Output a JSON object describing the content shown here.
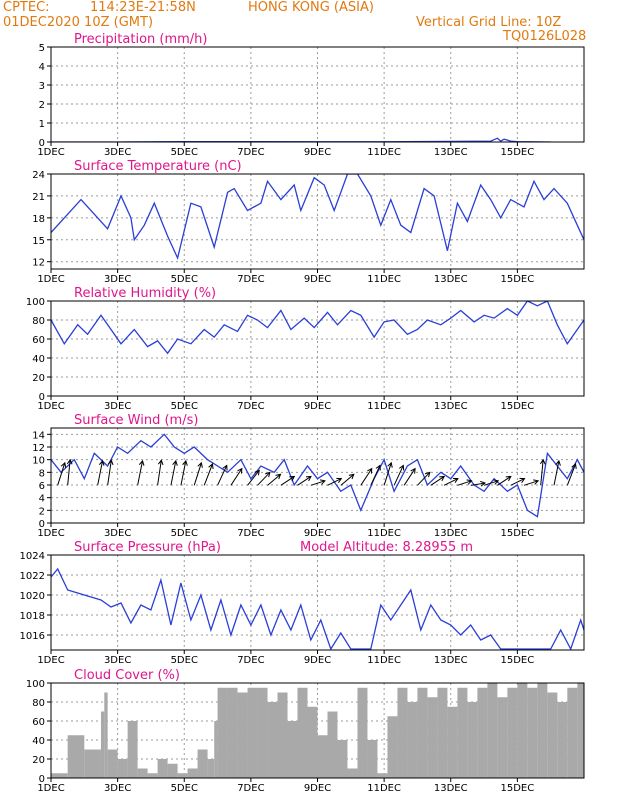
{
  "header": {
    "source": "CPTEC:",
    "coords": "114:23E-21:58N",
    "location": "HONG KONG (ASIA)",
    "datetime": "01DEC2020 10Z (GMT)",
    "grid_line": "Vertical Grid Line: 10Z",
    "code": "TQ0126L028"
  },
  "colors": {
    "header": "#e07a10",
    "title": "#e0168c",
    "line": "#2a3fd6",
    "bar": "#a9a9a9",
    "grid": "#9a9a9a"
  },
  "chart_data": [
    {
      "type": "line",
      "title": "Precipitation (mm/h)",
      "ylim": [
        0,
        5
      ],
      "yticks": [
        "0",
        "1",
        "2",
        "3",
        "4",
        "5"
      ],
      "xticks": [
        "1DEC",
        "3DEC",
        "5DEC",
        "7DEC",
        "9DEC",
        "11DEC",
        "13DEC",
        "15DEC"
      ],
      "x": [
        0,
        2,
        4,
        6,
        8,
        10,
        12,
        13.2,
        13.4,
        13.5,
        13.6,
        13.8,
        14,
        15
      ],
      "values": [
        0,
        0,
        0.02,
        0.02,
        0.01,
        0.01,
        0.03,
        0.05,
        0.2,
        0.05,
        0.15,
        0.05,
        0.02,
        0
      ]
    },
    {
      "type": "line",
      "title": "Surface Temperature (nC)",
      "ylim": [
        11,
        24
      ],
      "yticks": [
        "12",
        "15",
        "18",
        "21",
        "24"
      ],
      "xticks": [
        "1DEC",
        "3DEC",
        "5DEC",
        "7DEC",
        "9DEC",
        "11DEC",
        "13DEC",
        "15DEC"
      ],
      "x": [
        0,
        0.5,
        0.9,
        1.4,
        1.7,
        2.1,
        2.4,
        2.5,
        2.8,
        3.1,
        3.5,
        3.8,
        4.2,
        4.5,
        4.9,
        5.3,
        5.5,
        5.9,
        6.3,
        6.5,
        6.9,
        7.3,
        7.5,
        7.9,
        8.2,
        8.5,
        8.9,
        9.2,
        9.6,
        9.9,
        10.2,
        10.5,
        10.8,
        11.2,
        11.5,
        11.9,
        12.2,
        12.5,
        12.9,
        13.2,
        13.5,
        13.8,
        14.2,
        14.5,
        14.8,
        15.1,
        15.5,
        15.8,
        16
      ],
      "values": [
        16,
        18.5,
        20.5,
        18,
        16.5,
        21,
        18,
        15,
        17,
        20,
        15.5,
        12.5,
        20,
        19.5,
        14,
        21.5,
        22,
        19,
        20,
        23,
        20.5,
        22.5,
        19,
        23.5,
        22.5,
        19,
        24,
        24,
        21,
        17,
        20.5,
        17,
        16,
        22,
        21,
        13.5,
        20,
        17.5,
        22.5,
        20.5,
        18,
        20.5,
        19.5,
        23,
        20.5,
        22,
        20,
        17,
        15
      ]
    },
    {
      "type": "line",
      "title": "Relative Humidity (%)",
      "ylim": [
        0,
        100
      ],
      "yticks": [
        "0",
        "20",
        "40",
        "60",
        "80",
        "100"
      ],
      "xticks": [
        "1DEC",
        "3DEC",
        "5DEC",
        "7DEC",
        "9DEC",
        "11DEC",
        "13DEC",
        "15DEC"
      ],
      "x": [
        0,
        0.4,
        0.8,
        1.1,
        1.5,
        1.8,
        2.1,
        2.5,
        2.9,
        3.2,
        3.5,
        3.8,
        4.2,
        4.6,
        4.9,
        5.2,
        5.6,
        5.9,
        6.2,
        6.5,
        6.9,
        7.2,
        7.6,
        7.9,
        8.3,
        8.6,
        9.0,
        9.3,
        9.7,
        10.0,
        10.3,
        10.7,
        11.0,
        11.3,
        11.7,
        12.0,
        12.3,
        12.7,
        13.0,
        13.3,
        13.7,
        14.0,
        14.3,
        14.6,
        14.9,
        15.2,
        15.5,
        15.8,
        16
      ],
      "values": [
        80,
        55,
        75,
        65,
        85,
        70,
        55,
        70,
        52,
        58,
        45,
        60,
        55,
        70,
        62,
        75,
        68,
        85,
        80,
        72,
        90,
        70,
        82,
        72,
        88,
        75,
        90,
        85,
        62,
        78,
        80,
        65,
        70,
        80,
        75,
        82,
        90,
        78,
        85,
        82,
        92,
        85,
        100,
        95,
        100,
        75,
        55,
        70,
        80
      ]
    },
    {
      "type": "line",
      "title": "Surface Wind (m/s)",
      "ylim": [
        0,
        15
      ],
      "yticks": [
        "0",
        "2",
        "4",
        "6",
        "8",
        "10",
        "12",
        "14"
      ],
      "xticks": [
        "1DEC",
        "3DEC",
        "5DEC",
        "7DEC",
        "9DEC",
        "11DEC",
        "13DEC",
        "15DEC"
      ],
      "x": [
        0,
        0.3,
        0.7,
        1.0,
        1.3,
        1.7,
        2.0,
        2.3,
        2.7,
        3.0,
        3.4,
        3.7,
        4.0,
        4.3,
        4.7,
        5.0,
        5.3,
        5.7,
        6.0,
        6.3,
        6.7,
        7.0,
        7.3,
        7.7,
        8.0,
        8.3,
        8.7,
        9.0,
        9.3,
        9.7,
        10.0,
        10.3,
        10.7,
        11.0,
        11.3,
        11.7,
        12.0,
        12.3,
        12.7,
        13.0,
        13.3,
        13.7,
        14.0,
        14.3,
        14.6,
        14.9,
        15.2,
        15.5,
        15.8,
        16
      ],
      "values": [
        10,
        8,
        10,
        7,
        11,
        9,
        12,
        11,
        13,
        12,
        14,
        12,
        11,
        12,
        10,
        9,
        8,
        10,
        7,
        9,
        8,
        10,
        6,
        9,
        7,
        8,
        5,
        6,
        2,
        7,
        10,
        5,
        9,
        10,
        6,
        8,
        7,
        9,
        6,
        5,
        7,
        5,
        6,
        2,
        1,
        11,
        9,
        7,
        10,
        8
      ],
      "arrows": {
        "x": [
          0.2,
          0.5,
          1.4,
          1.7,
          2.6,
          3.2,
          3.6,
          3.9,
          4.3,
          4.6,
          5.0,
          5.4,
          5.9,
          6.2,
          6.5,
          6.9,
          7.4,
          7.8,
          8.3,
          8.7,
          9.3,
          9.6,
          10.0,
          10.3,
          10.6,
          11.0,
          11.4,
          11.8,
          12.2,
          12.6,
          13.0,
          13.4,
          13.8,
          14.2,
          14.7,
          15.1,
          15.5
        ],
        "deg": [
          210,
          190,
          200,
          195,
          200,
          195,
          200,
          200,
          210,
          215,
          220,
          230,
          235,
          240,
          245,
          250,
          250,
          260,
          255,
          245,
          230,
          220,
          210,
          220,
          230,
          240,
          250,
          255,
          260,
          265,
          260,
          250,
          255,
          260,
          190,
          200,
          215
        ]
      }
    },
    {
      "type": "line",
      "title": "Surface Pressure (hPa)",
      "subtitle": "Model Altitude: 8.28955 m",
      "ylim": [
        1014.5,
        1024
      ],
      "yticks": [
        "1016",
        "1018",
        "1020",
        "1022",
        "1024"
      ],
      "xticks": [
        "1DEC",
        "3DEC",
        "5DEC",
        "7DEC",
        "9DEC",
        "11DEC",
        "13DEC",
        "15DEC"
      ],
      "x": [
        0,
        0.2,
        0.5,
        0.8,
        1.2,
        1.5,
        1.8,
        2.1,
        2.4,
        2.7,
        3.0,
        3.3,
        3.6,
        3.9,
        4.2,
        4.5,
        4.8,
        5.1,
        5.4,
        5.7,
        6.0,
        6.3,
        6.6,
        6.9,
        7.2,
        7.5,
        7.8,
        8.1,
        8.4,
        8.7,
        9.0,
        9.3,
        9.6,
        9.9,
        10.2,
        10.5,
        10.8,
        11.1,
        11.4,
        11.7,
        12.0,
        12.3,
        12.6,
        12.9,
        13.2,
        13.5,
        13.8,
        14.1,
        14.4,
        14.7,
        15.0,
        15.3,
        15.6,
        15.9,
        16
      ],
      "values": [
        1021.8,
        1022.6,
        1020.5,
        1020.2,
        1019.8,
        1019.5,
        1018.8,
        1019.2,
        1017.2,
        1019.0,
        1018.5,
        1021.5,
        1017.0,
        1021.2,
        1017.5,
        1020.0,
        1016.5,
        1019.5,
        1016.0,
        1019.0,
        1017.0,
        1019.0,
        1016.0,
        1018.5,
        1016.5,
        1019.0,
        1015.5,
        1017.5,
        1014.6,
        1016.2,
        1014.6,
        1014.6,
        1014.6,
        1019.0,
        1017.5,
        1019.0,
        1020.5,
        1016.5,
        1019.0,
        1017.5,
        1017.0,
        1016.0,
        1017.0,
        1015.5,
        1016.0,
        1014.6,
        1014.6,
        1014.6,
        1014.6,
        1014.6,
        1014.6,
        1016.5,
        1014.6,
        1017.5,
        1016.5
      ]
    },
    {
      "type": "bar",
      "title": "Cloud Cover (%)",
      "ylim": [
        0,
        100
      ],
      "yticks": [
        "0",
        "20",
        "40",
        "60",
        "80",
        "100"
      ],
      "xticks": [
        "1DEC",
        "3DEC",
        "5DEC",
        "7DEC",
        "9DEC",
        "11DEC",
        "13DEC",
        "15DEC"
      ],
      "x": [
        0,
        0.5,
        1.0,
        1.5,
        1.6,
        1.7,
        2.0,
        2.3,
        2.6,
        2.9,
        3.2,
        3.5,
        3.8,
        4.1,
        4.4,
        4.7,
        4.9,
        5.0,
        5.3,
        5.6,
        5.9,
        6.2,
        6.5,
        6.8,
        7.1,
        7.4,
        7.7,
        8.0,
        8.3,
        8.6,
        8.9,
        9.2,
        9.5,
        9.8,
        10.1,
        10.4,
        10.7,
        11.0,
        11.3,
        11.6,
        11.9,
        12.2,
        12.5,
        12.8,
        13.1,
        13.4,
        13.7,
        14.0,
        14.3,
        14.6,
        14.9,
        15.2,
        15.5,
        15.8
      ],
      "values": [
        5,
        45,
        30,
        70,
        90,
        30,
        20,
        60,
        10,
        5,
        20,
        15,
        5,
        10,
        30,
        20,
        60,
        95,
        95,
        90,
        95,
        95,
        80,
        90,
        60,
        95,
        75,
        45,
        70,
        40,
        10,
        95,
        40,
        5,
        65,
        95,
        80,
        95,
        85,
        95,
        75,
        95,
        80,
        95,
        100,
        85,
        95,
        100,
        95,
        100,
        90,
        80,
        95,
        100
      ]
    }
  ]
}
